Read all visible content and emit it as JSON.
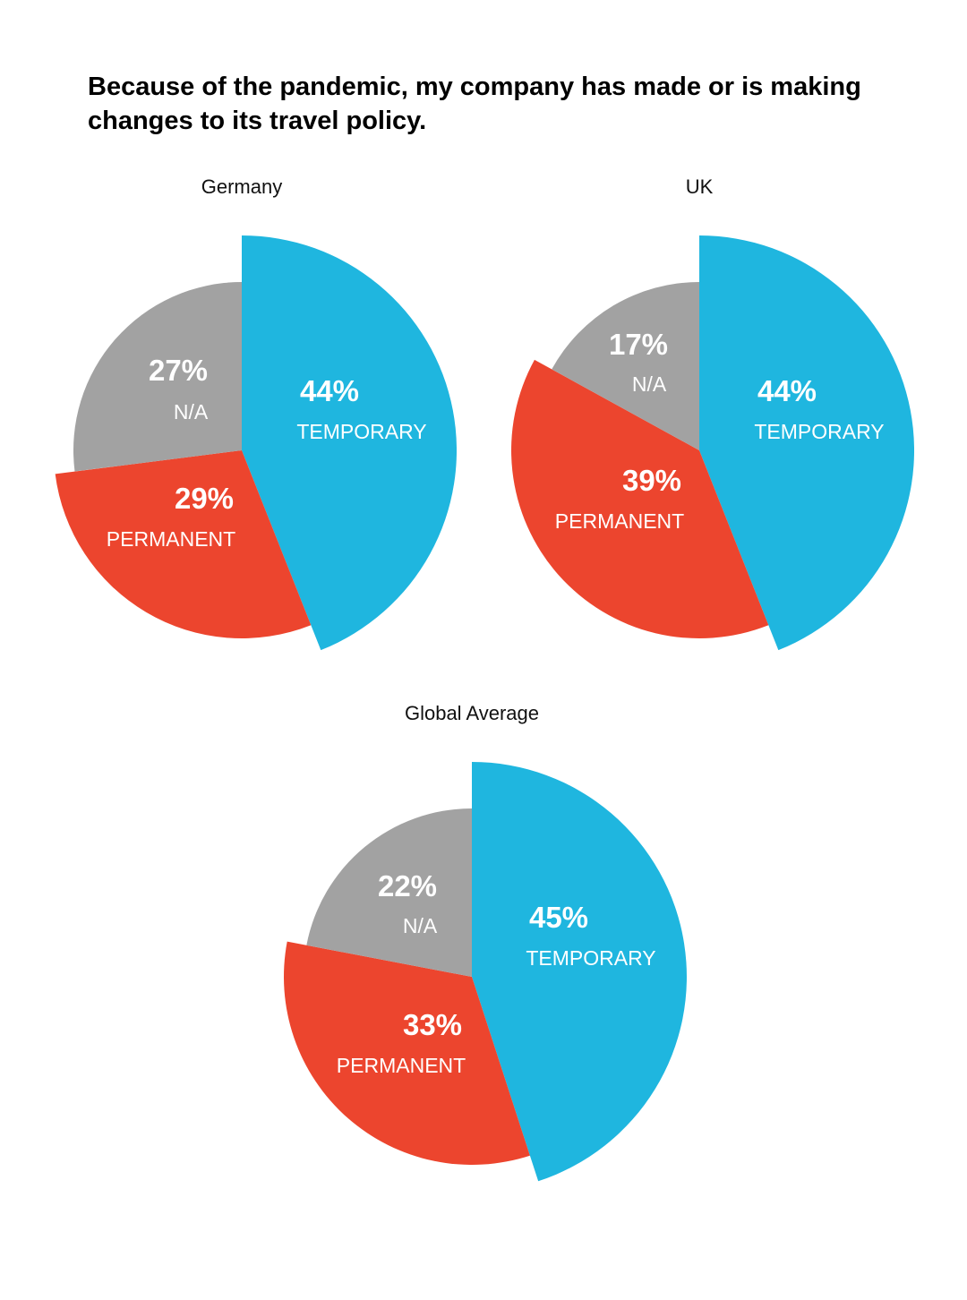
{
  "title": "Because of the pandemic, my company has made or is making changes to its travel policy.",
  "colors": {
    "temporary": "#1fb6df",
    "permanent": "#ec452e",
    "na": "#a2a2a2"
  },
  "chart_data": [
    {
      "type": "pie",
      "title": "Germany",
      "slices": [
        {
          "key": "temporary",
          "label": "TEMPORARY",
          "value": 44,
          "display": "44%"
        },
        {
          "key": "permanent",
          "label": "PERMANENT",
          "value": 29,
          "display": "29%"
        },
        {
          "key": "na",
          "label": "N/A",
          "value": 27,
          "display": "27%"
        }
      ]
    },
    {
      "type": "pie",
      "title": "UK",
      "slices": [
        {
          "key": "temporary",
          "label": "TEMPORARY",
          "value": 44,
          "display": "44%"
        },
        {
          "key": "permanent",
          "label": "PERMANENT",
          "value": 39,
          "display": "39%"
        },
        {
          "key": "na",
          "label": "N/A",
          "value": 17,
          "display": "17%"
        }
      ]
    },
    {
      "type": "pie",
      "title": "Global Average",
      "slices": [
        {
          "key": "temporary",
          "label": "TEMPORARY",
          "value": 45,
          "display": "45%"
        },
        {
          "key": "permanent",
          "label": "PERMANENT",
          "value": 33,
          "display": "33%"
        },
        {
          "key": "na",
          "label": "N/A",
          "value": 22,
          "display": "22%"
        }
      ]
    }
  ]
}
